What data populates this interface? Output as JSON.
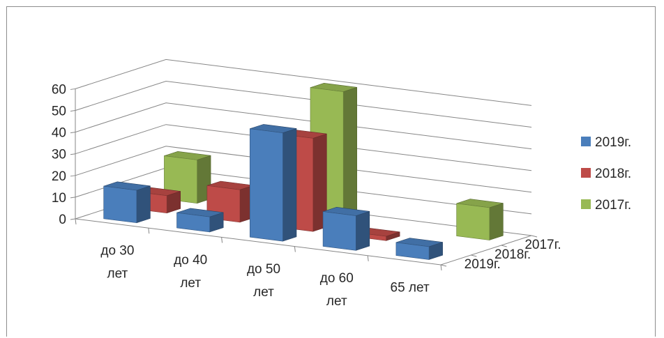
{
  "chart_data": {
    "type": "bar",
    "subtype": "3d-column",
    "categories": [
      "до 30\nлет",
      "до 40\nлет",
      "до 50\nлет",
      "до 60\nлет",
      "65 лет"
    ],
    "series": [
      {
        "name": "2019г.",
        "color": "#4a7ebb",
        "values": [
          15,
          7,
          50,
          16,
          6
        ]
      },
      {
        "name": "2018г.",
        "color": "#be4b48",
        "values": [
          8,
          15,
          43,
          2,
          0
        ]
      },
      {
        "name": "2017г.",
        "color": "#98b954",
        "values": [
          20,
          0,
          60,
          0,
          15
        ]
      }
    ],
    "depth_labels": [
      "2019г.",
      "2018г.",
      "2017г."
    ],
    "yticks": [
      "0",
      "10",
      "20",
      "30",
      "40",
      "50",
      "60"
    ],
    "ylim": [
      0,
      60
    ],
    "grid": true,
    "legend_position": "right"
  }
}
